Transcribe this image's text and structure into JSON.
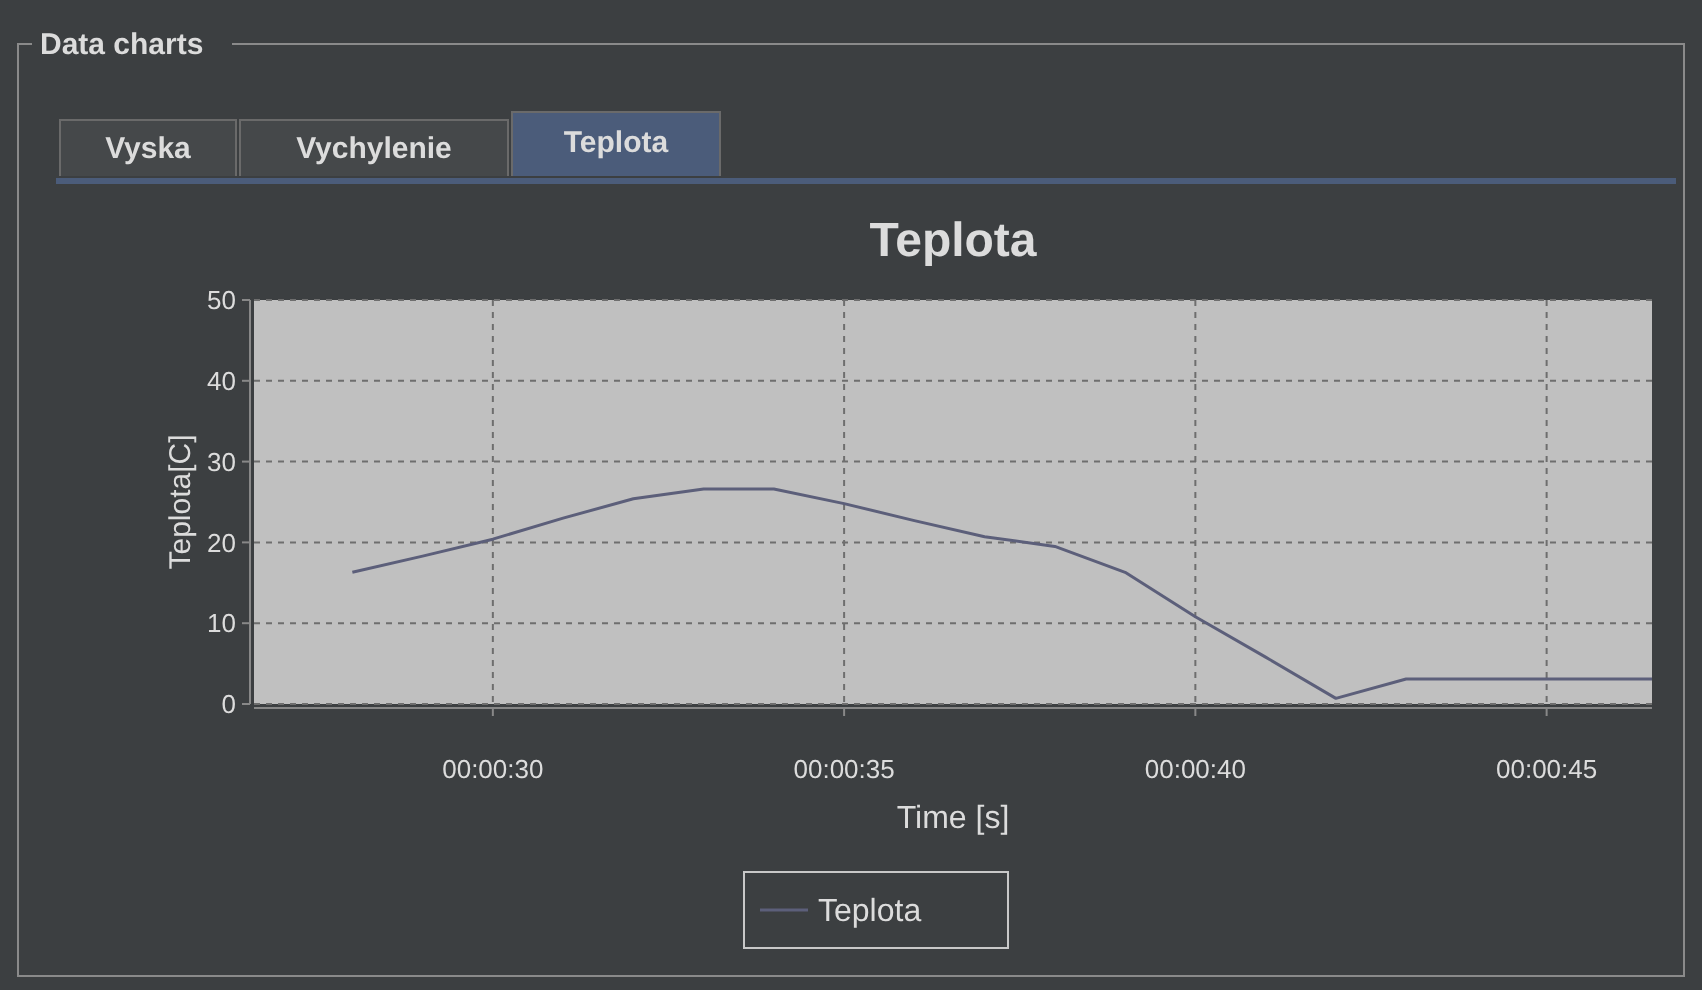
{
  "chart_data": {
    "type": "line",
    "title": "Teplota",
    "xlabel": "Time [s]",
    "ylabel": "Teplota[C]",
    "annotations": [
      "Data charts",
      "Vyska",
      "Vychylenie",
      "Teplota"
    ],
    "x": [
      28,
      29,
      30,
      31,
      32,
      33,
      34,
      35,
      36,
      37,
      38,
      39,
      40,
      41,
      42,
      43,
      44,
      45,
      46.5
    ],
    "series": [
      {
        "name": "Teplota",
        "color": "#5c5f7a",
        "values": [
          16.3,
          18.3,
          20.4,
          23,
          25.4,
          26.6,
          26.6,
          24.8,
          22.7,
          20.7,
          19.5,
          16.3,
          10.8,
          5.8,
          0.7,
          3.1,
          3.1,
          3.1,
          3.1
        ]
      }
    ],
    "xlim": [
      26.6,
      46.5
    ],
    "xticks": [
      {
        "value": 30,
        "label": "00:00:30"
      },
      {
        "value": 35,
        "label": "00:00:35"
      },
      {
        "value": 40,
        "label": "00:00:40"
      },
      {
        "value": 45,
        "label": "00:00:45"
      }
    ],
    "ylim": [
      0,
      50
    ],
    "yticks": [
      0,
      10,
      20,
      30,
      40,
      50
    ],
    "grid": true,
    "legend": "bottom",
    "marker": "none",
    "line_style": "solid"
  }
}
